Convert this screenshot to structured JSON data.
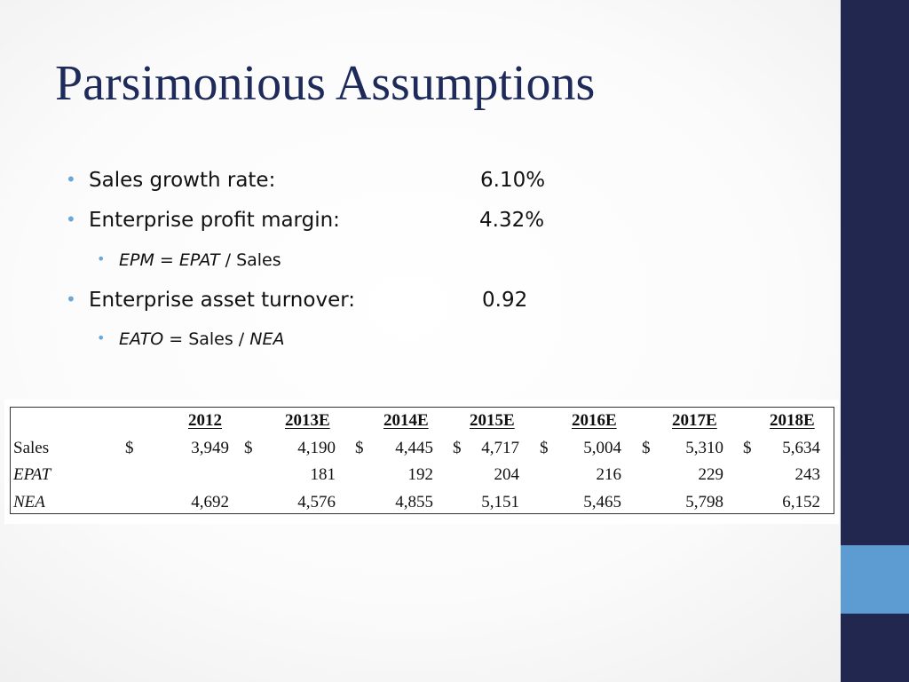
{
  "slide": {
    "title": "Parsimonious Assumptions",
    "bullets": {
      "sales_growth": {
        "label": "Sales growth rate:",
        "value": "6.10%"
      },
      "epm": {
        "label": "Enterprise profit margin:",
        "value": "4.32%"
      },
      "epm_formula": {
        "lhs": "EPM = EPAT",
        "rhs": " / Sales"
      },
      "eato": {
        "label": "Enterprise asset turnover:",
        "value": "0.92"
      },
      "eato_formula": {
        "lhs": "EATO = ",
        "mid": "Sales / ",
        "rhs": "NEA"
      }
    },
    "table": {
      "headers": [
        "2012",
        "2013E",
        "2014E",
        "2015E",
        "2016E",
        "2017E",
        "2018E"
      ],
      "currency": "$",
      "rows": [
        {
          "label": "Sales",
          "values": [
            "3,949",
            "4,190",
            "4,445",
            "4,717",
            "5,004",
            "5,310",
            "5,634"
          ]
        },
        {
          "label": "EPAT",
          "values": [
            "",
            "181",
            "192",
            "204",
            "216",
            "229",
            "243"
          ]
        },
        {
          "label": "NEA",
          "values": [
            "4,692",
            "4,576",
            "4,855",
            "5,151",
            "5,465",
            "5,798",
            "6,152"
          ]
        }
      ]
    },
    "colors": {
      "sidebar": "#222750",
      "accent": "#5d9bd3",
      "title": "#1e2a5a",
      "bullet": "#6aa7d8"
    }
  }
}
